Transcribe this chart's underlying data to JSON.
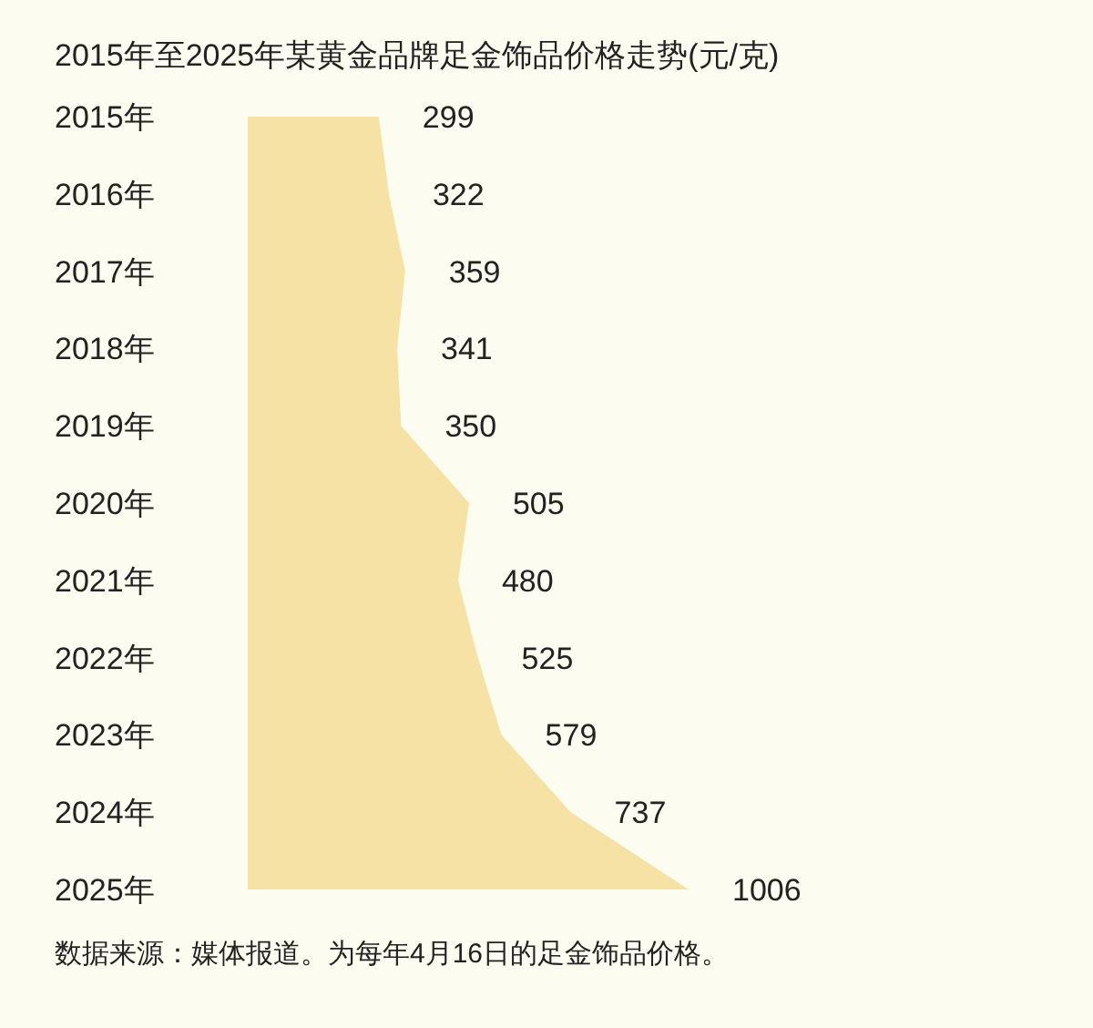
{
  "chart_data": {
    "type": "area",
    "orientation": "horizontal",
    "title": "2015年至2025年某黄金品牌足金饰品价格走势(元/克)",
    "categories": [
      "2015年",
      "2016年",
      "2017年",
      "2018年",
      "2019年",
      "2020年",
      "2021年",
      "2022年",
      "2023年",
      "2024年",
      "2025年"
    ],
    "values": [
      299,
      322,
      359,
      341,
      350,
      505,
      480,
      525,
      579,
      737,
      1006
    ],
    "color": "#f7e2a6",
    "data_labels": true,
    "annotations": [
      "数据来源：媒体报道。为每年4月16日的足金饰品价格。"
    ]
  }
}
